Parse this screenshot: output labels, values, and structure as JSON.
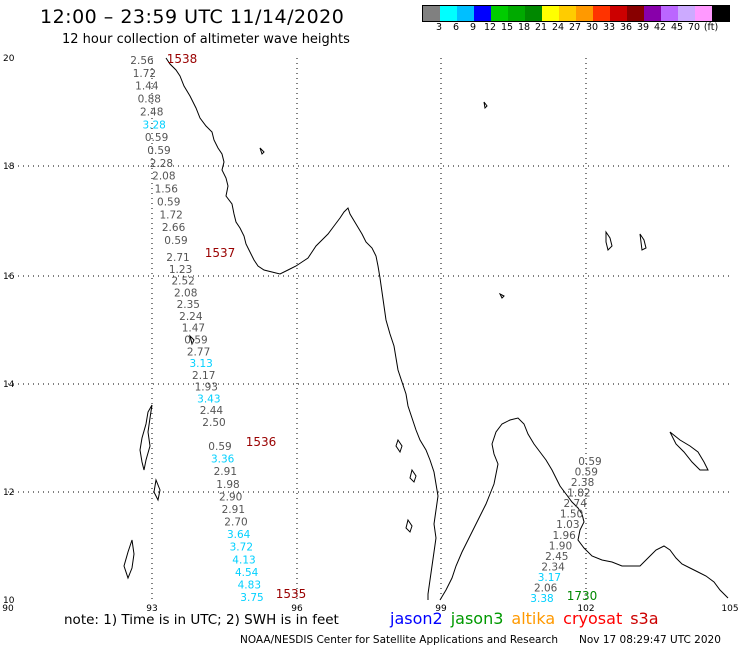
{
  "header": {
    "title": "12:00 – 23:59 UTC 11/14/2020",
    "subtitle": "12 hour collection of altimeter wave heights"
  },
  "color_scale": {
    "colors": [
      "#808080",
      "#00ffff",
      "#00bfff",
      "#0000ff",
      "#00cc00",
      "#00aa00",
      "#008800",
      "#ffff00",
      "#ffcc00",
      "#ff9900",
      "#ff3300",
      "#cc0000",
      "#880000",
      "#8800aa",
      "#bb66ff",
      "#ccaaff",
      "#ff99ff",
      "#000000"
    ],
    "labels": [
      "3",
      "6",
      "9",
      "12",
      "15",
      "18",
      "21",
      "24",
      "27",
      "30",
      "33",
      "36",
      "39",
      "42",
      "45",
      "70",
      "(ft)"
    ]
  },
  "axes": {
    "lat_labels": [
      "20",
      "18",
      "16",
      "14",
      "12",
      "10"
    ],
    "lon_labels": [
      "90",
      "93",
      "96",
      "99",
      "102",
      "105"
    ]
  },
  "tracks": [
    {
      "satellite": "cryosat",
      "label": "1538",
      "values": [
        {
          "v": "2.56",
          "c": "gray"
        },
        {
          "v": "1.72",
          "c": "gray"
        },
        {
          "v": "1.44",
          "c": "gray"
        },
        {
          "v": "0.88",
          "c": "gray"
        },
        {
          "v": "2.48",
          "c": "gray"
        },
        {
          "v": "3.28",
          "c": "cyan"
        },
        {
          "v": "0.59",
          "c": "gray"
        },
        {
          "v": "0.59",
          "c": "gray"
        },
        {
          "v": "2.28",
          "c": "gray"
        },
        {
          "v": "2.08",
          "c": "gray"
        },
        {
          "v": "1.56",
          "c": "gray"
        },
        {
          "v": "0.59",
          "c": "gray"
        },
        {
          "v": "1.72",
          "c": "gray"
        },
        {
          "v": "2.66",
          "c": "gray"
        },
        {
          "v": "0.59",
          "c": "gray"
        }
      ]
    },
    {
      "satellite": "cryosat",
      "label": "1537",
      "values": [
        {
          "v": "2.71",
          "c": "gray"
        },
        {
          "v": "1.23",
          "c": "gray"
        },
        {
          "v": "2.52",
          "c": "gray"
        },
        {
          "v": "2.08",
          "c": "gray"
        },
        {
          "v": "2.35",
          "c": "gray"
        },
        {
          "v": "2.24",
          "c": "gray"
        },
        {
          "v": "1.47",
          "c": "gray"
        },
        {
          "v": "0.59",
          "c": "gray"
        },
        {
          "v": "2.77",
          "c": "gray"
        },
        {
          "v": "3.13",
          "c": "cyan"
        },
        {
          "v": "2.17",
          "c": "gray"
        },
        {
          "v": "1.93",
          "c": "gray"
        },
        {
          "v": "3.43",
          "c": "cyan"
        },
        {
          "v": "2.44",
          "c": "gray"
        },
        {
          "v": "2.50",
          "c": "gray"
        }
      ]
    },
    {
      "satellite": "cryosat",
      "label": "1536",
      "values": [
        {
          "v": "0.59",
          "c": "gray"
        },
        {
          "v": "3.36",
          "c": "cyan"
        },
        {
          "v": "2.91",
          "c": "gray"
        },
        {
          "v": "1.98",
          "c": "gray"
        },
        {
          "v": "2.90",
          "c": "gray"
        },
        {
          "v": "2.91",
          "c": "gray"
        },
        {
          "v": "2.70",
          "c": "gray"
        },
        {
          "v": "3.64",
          "c": "cyan"
        },
        {
          "v": "3.72",
          "c": "cyan"
        },
        {
          "v": "4.13",
          "c": "cyan"
        },
        {
          "v": "4.54",
          "c": "cyan"
        },
        {
          "v": "4.83",
          "c": "cyan"
        },
        {
          "v": "3.75",
          "c": "cyan"
        }
      ]
    },
    {
      "satellite": "cryosat",
      "label": "1535",
      "values": []
    },
    {
      "satellite": "jason3",
      "label": "1730",
      "values": [
        {
          "v": "0.59",
          "c": "gray"
        },
        {
          "v": "0.59",
          "c": "gray"
        },
        {
          "v": "2.38",
          "c": "gray"
        },
        {
          "v": "1.82",
          "c": "gray"
        },
        {
          "v": "2.74",
          "c": "gray"
        },
        {
          "v": "1.50",
          "c": "gray"
        },
        {
          "v": "1.03",
          "c": "gray"
        },
        {
          "v": "1.96",
          "c": "gray"
        },
        {
          "v": "1.90",
          "c": "gray"
        },
        {
          "v": "2.45",
          "c": "gray"
        },
        {
          "v": "2.34",
          "c": "gray"
        },
        {
          "v": "3.17",
          "c": "cyan"
        },
        {
          "v": "2.06",
          "c": "gray"
        },
        {
          "v": "3.38",
          "c": "cyan"
        }
      ]
    }
  ],
  "footer": {
    "note": "note: 1) Time is in UTC; 2) SWH is in feet",
    "legend": [
      {
        "name": "jason2",
        "color": "#0000ff"
      },
      {
        "name": "jason3",
        "color": "#009900"
      },
      {
        "name": "altika",
        "color": "#ff9900"
      },
      {
        "name": "cryosat",
        "color": "#ff0000"
      },
      {
        "name": "s3a",
        "color": "#cc0000"
      }
    ],
    "credit": "NOAA/NESDIS Center for Satellite Applications and Research",
    "timestamp": "Nov 17 08:29:47 UTC 2020"
  }
}
